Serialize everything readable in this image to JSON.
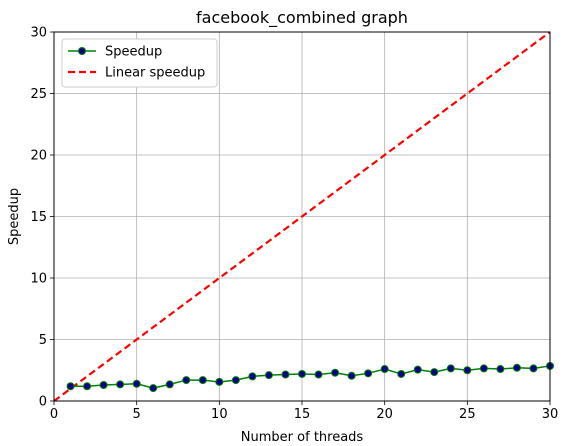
{
  "chart_data": {
    "type": "line",
    "title": "facebook_combined graph",
    "xlabel": "Number of threads",
    "ylabel": "Speedup",
    "xlim": [
      0,
      30
    ],
    "ylim": [
      0,
      30
    ],
    "xticks": [
      0,
      5,
      10,
      15,
      20,
      25,
      30
    ],
    "yticks": [
      0,
      5,
      10,
      15,
      20,
      25,
      30
    ],
    "grid": true,
    "legend_position": "top-left",
    "series": [
      {
        "name": "Speedup",
        "style": "line-with-markers",
        "line_color": "#008000",
        "marker_color": "#00008b",
        "x": [
          1,
          2,
          3,
          4,
          5,
          6,
          7,
          8,
          9,
          10,
          11,
          12,
          13,
          14,
          15,
          16,
          17,
          18,
          19,
          20,
          21,
          22,
          23,
          24,
          25,
          26,
          27,
          28,
          29,
          30
        ],
        "y": [
          1.2,
          1.2,
          1.3,
          1.35,
          1.4,
          1.05,
          1.35,
          1.7,
          1.7,
          1.55,
          1.7,
          2.0,
          2.1,
          2.15,
          2.2,
          2.15,
          2.3,
          2.05,
          2.25,
          2.6,
          2.2,
          2.55,
          2.35,
          2.65,
          2.5,
          2.65,
          2.6,
          2.7,
          2.65,
          2.85
        ]
      },
      {
        "name": "Linear speedup",
        "style": "dashed",
        "line_color": "#ff0000",
        "x": [
          0,
          30
        ],
        "y": [
          0,
          30
        ]
      }
    ]
  }
}
